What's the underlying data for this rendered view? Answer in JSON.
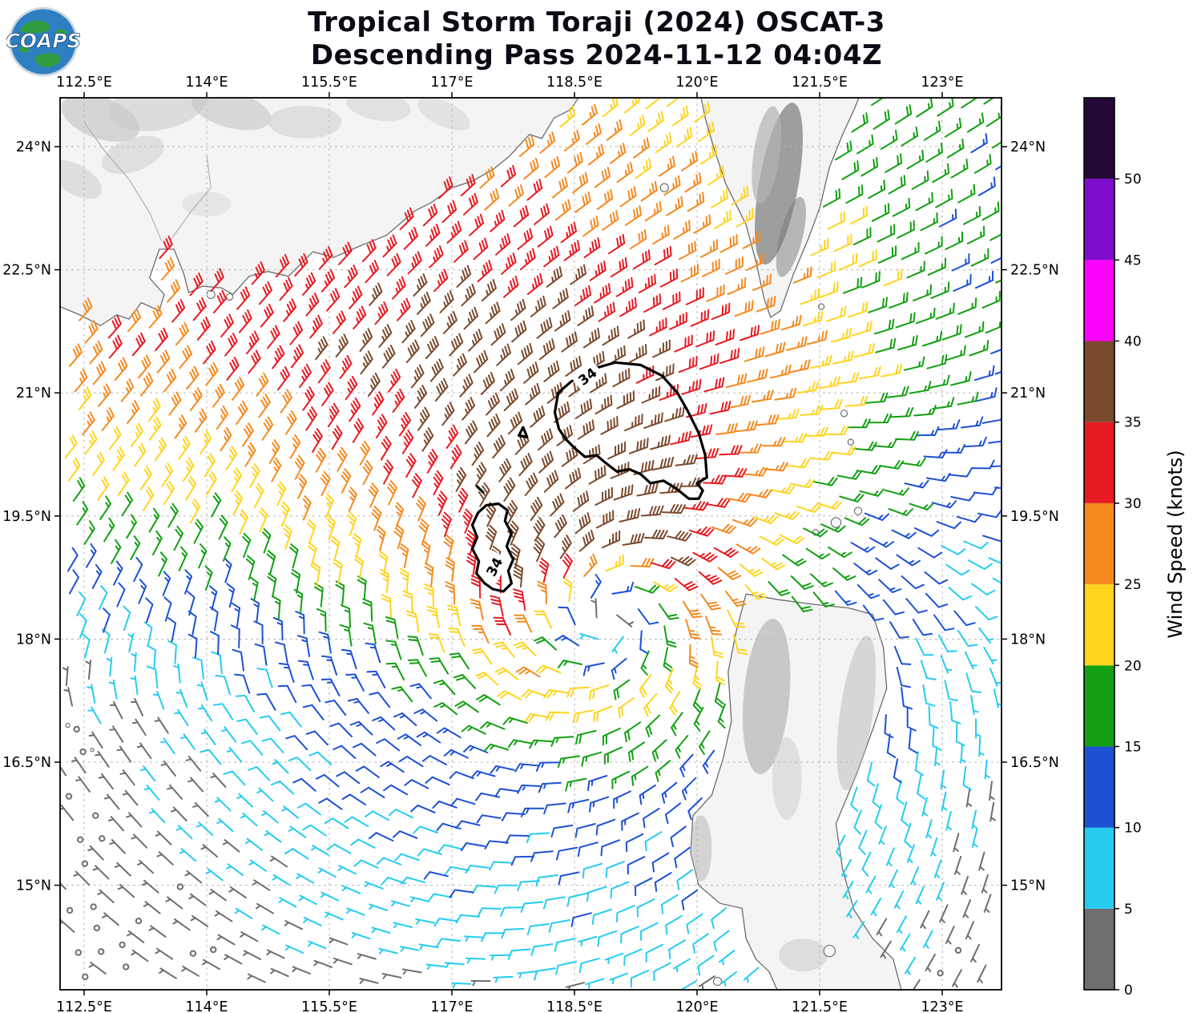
{
  "header": {
    "title_line1": "Tropical Storm Toraji (2024) OSCAT-3",
    "title_line2": "Descending Pass 2024-11-12 04:04Z"
  },
  "logo": {
    "text": "COAPS"
  },
  "chart_data": {
    "type": "scatter",
    "subtype": "wind-barb-map",
    "title": "Tropical Storm Toraji (2024) OSCAT-3",
    "subtitle": "Descending Pass 2024-11-12 04:04Z",
    "storm_name": "Toraji",
    "x_axis": {
      "ticks": [
        112.5,
        114,
        115.5,
        117,
        118.5,
        120,
        121.5,
        123
      ],
      "labels": [
        "112.5°E",
        "114°E",
        "115.5°E",
        "117°E",
        "118.5°E",
        "120°E",
        "121.5°E",
        "123°E"
      ],
      "range": [
        112.206,
        123.725
      ]
    },
    "y_axis": {
      "ticks": [
        15,
        16.5,
        18,
        19.5,
        21,
        22.5,
        24
      ],
      "labels": [
        "15°N",
        "16.5°N",
        "18°N",
        "19.5°N",
        "21°N",
        "22.5°N",
        "24°N"
      ],
      "range": [
        13.727,
        24.596
      ]
    },
    "colorbar": {
      "label": "Wind Speed (knots)",
      "tick_labels": [
        "0",
        "5",
        "10",
        "15",
        "20",
        "25",
        "30",
        "35",
        "40",
        "45",
        "50"
      ],
      "bins": [
        {
          "max": 5,
          "color": "#6e6e6e"
        },
        {
          "max": 10,
          "color": "#25ccf0"
        },
        {
          "max": 15,
          "color": "#1d50d4"
        },
        {
          "max": 20,
          "color": "#12a012"
        },
        {
          "max": 25,
          "color": "#ffd41f"
        },
        {
          "max": 30,
          "color": "#f6891e"
        },
        {
          "max": 35,
          "color": "#e71a21"
        },
        {
          "max": 40,
          "color": "#7a4a2d"
        },
        {
          "max": 45,
          "color": "#fb02fb"
        },
        {
          "max": 50,
          "color": "#7d0ccd"
        },
        {
          "max": 999,
          "color": "#240838"
        }
      ]
    },
    "wind_field": {
      "center_lon": 118.85,
      "center_lat": 18.4,
      "max_wind_kt": 34,
      "radius_max_wind_deg": 1.1,
      "asymmetry": "north-enhanced",
      "background_flow": "northeasterly monsoon, strongest north and west",
      "grid_spacing_deg": 0.27,
      "grid_rotation_deg": 12,
      "barb_units": "knots"
    },
    "contours_34kt": [
      {
        "closed": true,
        "points": [
          [
            118.26,
            20.76
          ],
          [
            118.3,
            21.0
          ],
          [
            118.45,
            21.13
          ],
          [
            118.68,
            21.28
          ],
          [
            119.0,
            21.37
          ],
          [
            119.31,
            21.34
          ],
          [
            119.57,
            21.21
          ],
          [
            119.76,
            21.0
          ],
          [
            119.88,
            20.79
          ],
          [
            120.02,
            20.51
          ],
          [
            120.1,
            20.24
          ],
          [
            120.12,
            19.97
          ],
          [
            120.0,
            19.9
          ],
          [
            120.07,
            19.81
          ],
          [
            120.02,
            19.71
          ],
          [
            119.9,
            19.71
          ],
          [
            119.75,
            19.83
          ],
          [
            119.59,
            19.93
          ],
          [
            119.43,
            19.9
          ],
          [
            119.31,
            20.01
          ],
          [
            119.17,
            20.07
          ],
          [
            119.02,
            20.04
          ],
          [
            118.89,
            20.14
          ],
          [
            118.77,
            20.24
          ],
          [
            118.63,
            20.22
          ],
          [
            118.51,
            20.32
          ],
          [
            118.4,
            20.43
          ],
          [
            118.31,
            20.56
          ]
        ]
      },
      {
        "closed": true,
        "points": [
          [
            117.42,
            19.63
          ],
          [
            117.32,
            19.54
          ],
          [
            117.25,
            19.39
          ],
          [
            117.31,
            19.24
          ],
          [
            117.25,
            19.1
          ],
          [
            117.33,
            18.95
          ],
          [
            117.3,
            18.8
          ],
          [
            117.4,
            18.68
          ],
          [
            117.5,
            18.61
          ],
          [
            117.63,
            18.58
          ],
          [
            117.73,
            18.68
          ],
          [
            117.69,
            18.83
          ],
          [
            117.75,
            18.97
          ],
          [
            117.67,
            19.13
          ],
          [
            117.73,
            19.29
          ],
          [
            117.65,
            19.44
          ],
          [
            117.68,
            19.57
          ],
          [
            117.57,
            19.65
          ]
        ]
      },
      {
        "closed": true,
        "points": [
          [
            117.87,
            20.58
          ],
          [
            117.82,
            20.48
          ],
          [
            117.92,
            20.46
          ],
          [
            117.88,
            20.56
          ]
        ]
      },
      {
        "closed": false,
        "points": [
          [
            117.31,
            19.86
          ],
          [
            117.38,
            19.79
          ]
        ]
      }
    ],
    "contour_labels": [
      {
        "text": "34",
        "lon": 118.66,
        "lat": 21.2,
        "angle": -38
      },
      {
        "text": "34",
        "lon": 117.52,
        "lat": 18.88,
        "angle": -62
      }
    ]
  },
  "map": {
    "land_fill": "#f4f4f4",
    "coast_color": "#6b6b6b",
    "china_coast_polygon": [
      [
        112.206,
        22.05
      ],
      [
        112.45,
        21.95
      ],
      [
        112.7,
        21.82
      ],
      [
        112.9,
        21.95
      ],
      [
        113.05,
        21.9
      ],
      [
        113.2,
        22.1
      ],
      [
        113.42,
        22.0
      ],
      [
        113.48,
        22.2
      ],
      [
        113.3,
        22.4
      ],
      [
        113.42,
        22.75
      ],
      [
        113.6,
        22.75
      ],
      [
        113.72,
        22.45
      ],
      [
        113.78,
        22.22
      ],
      [
        113.95,
        22.3
      ],
      [
        114.18,
        22.28
      ],
      [
        114.32,
        22.2
      ],
      [
        114.52,
        22.42
      ],
      [
        114.75,
        22.48
      ],
      [
        115.0,
        22.42
      ],
      [
        115.3,
        22.72
      ],
      [
        115.55,
        22.65
      ],
      [
        115.85,
        22.78
      ],
      [
        116.2,
        22.92
      ],
      [
        116.55,
        23.22
      ],
      [
        116.75,
        23.32
      ],
      [
        117.0,
        23.5
      ],
      [
        117.25,
        23.58
      ],
      [
        117.5,
        23.72
      ],
      [
        117.7,
        23.88
      ],
      [
        117.95,
        24.15
      ],
      [
        118.1,
        24.1
      ],
      [
        118.25,
        24.35
      ],
      [
        118.45,
        24.45
      ],
      [
        118.55,
        24.596
      ],
      [
        112.206,
        24.596
      ]
    ],
    "taiwan_polygon": [
      [
        120.05,
        24.596
      ],
      [
        120.1,
        24.35
      ],
      [
        120.2,
        24.0
      ],
      [
        120.35,
        23.55
      ],
      [
        120.6,
        23.05
      ],
      [
        120.72,
        22.6
      ],
      [
        120.82,
        22.15
      ],
      [
        120.9,
        21.92
      ],
      [
        121.02,
        22.0
      ],
      [
        121.18,
        22.45
      ],
      [
        121.35,
        22.85
      ],
      [
        121.5,
        23.25
      ],
      [
        121.62,
        23.75
      ],
      [
        121.78,
        24.15
      ],
      [
        121.92,
        24.45
      ],
      [
        121.98,
        24.596
      ]
    ],
    "luzon_polygon": [
      [
        120.6,
        18.55
      ],
      [
        121.0,
        18.48
      ],
      [
        121.45,
        18.42
      ],
      [
        121.85,
        18.38
      ],
      [
        122.15,
        18.3
      ],
      [
        122.28,
        17.9
      ],
      [
        122.32,
        17.4
      ],
      [
        122.15,
        16.9
      ],
      [
        121.95,
        16.35
      ],
      [
        121.7,
        15.75
      ],
      [
        121.78,
        15.2
      ],
      [
        121.92,
        14.7
      ],
      [
        122.15,
        14.35
      ],
      [
        122.4,
        14.1
      ],
      [
        122.5,
        13.727
      ],
      [
        120.98,
        13.727
      ],
      [
        120.88,
        13.95
      ],
      [
        120.72,
        14.1
      ],
      [
        120.6,
        14.35
      ],
      [
        120.55,
        14.72
      ],
      [
        120.28,
        14.78
      ],
      [
        120.02,
        15.0
      ],
      [
        119.92,
        15.4
      ],
      [
        119.95,
        15.85
      ],
      [
        120.18,
        16.1
      ],
      [
        120.32,
        16.55
      ],
      [
        120.42,
        17.0
      ],
      [
        120.38,
        17.6
      ],
      [
        120.48,
        18.1
      ]
    ],
    "islands": [
      {
        "lon": 114.05,
        "lat": 22.2,
        "r": 0.05
      },
      {
        "lon": 114.28,
        "lat": 22.17,
        "r": 0.04
      },
      {
        "lon": 119.6,
        "lat": 23.5,
        "r": 0.05
      },
      {
        "lon": 121.8,
        "lat": 20.75,
        "r": 0.04
      },
      {
        "lon": 121.88,
        "lat": 20.4,
        "r": 0.035
      },
      {
        "lon": 121.7,
        "lat": 19.42,
        "r": 0.06
      },
      {
        "lon": 121.97,
        "lat": 19.56,
        "r": 0.045
      },
      {
        "lon": 121.45,
        "lat": 19.3,
        "r": 0.035
      },
      {
        "lon": 112.3,
        "lat": 16.95,
        "r": 0.025
      },
      {
        "lon": 112.6,
        "lat": 16.65,
        "r": 0.02
      },
      {
        "lon": 121.62,
        "lat": 14.2,
        "r": 0.07
      },
      {
        "lon": 120.25,
        "lat": 13.83,
        "r": 0.05
      },
      {
        "lon": 121.52,
        "lat": 22.05,
        "r": 0.035
      }
    ],
    "terrain_patches": [
      {
        "lon": 112.7,
        "lat": 24.35,
        "rx": 0.5,
        "ry": 0.25,
        "rot": 20,
        "color": "#c8c8c8",
        "op": 0.7
      },
      {
        "lon": 113.4,
        "lat": 24.5,
        "rx": 0.6,
        "ry": 0.3,
        "rot": -10,
        "color": "#cccccc",
        "op": 0.6
      },
      {
        "lon": 114.3,
        "lat": 24.45,
        "rx": 0.5,
        "ry": 0.22,
        "rot": 15,
        "color": "#c4c4c4",
        "op": 0.6
      },
      {
        "lon": 115.2,
        "lat": 24.3,
        "rx": 0.45,
        "ry": 0.2,
        "rot": 0,
        "color": "#d0d0d0",
        "op": 0.6
      },
      {
        "lon": 112.4,
        "lat": 23.6,
        "rx": 0.35,
        "ry": 0.18,
        "rot": 30,
        "color": "#cfcfcf",
        "op": 0.6
      },
      {
        "lon": 113.1,
        "lat": 23.9,
        "rx": 0.4,
        "ry": 0.2,
        "rot": -20,
        "color": "#c9c9c9",
        "op": 0.5
      },
      {
        "lon": 116.1,
        "lat": 24.5,
        "rx": 0.4,
        "ry": 0.18,
        "rot": 10,
        "color": "#d2d2d2",
        "op": 0.55
      },
      {
        "lon": 114.0,
        "lat": 23.3,
        "rx": 0.3,
        "ry": 0.15,
        "rot": 0,
        "color": "#d6d6d6",
        "op": 0.5
      },
      {
        "lon": 116.9,
        "lat": 24.4,
        "rx": 0.35,
        "ry": 0.15,
        "rot": 25,
        "color": "#cfcfcf",
        "op": 0.5
      },
      {
        "lon": 121.0,
        "lat": 23.55,
        "rx": 0.24,
        "ry": 1.0,
        "rot": 10,
        "color": "#8e8e8e",
        "op": 0.85
      },
      {
        "lon": 120.85,
        "lat": 23.9,
        "rx": 0.16,
        "ry": 0.6,
        "rot": 8,
        "color": "#b3b3b3",
        "op": 0.7
      },
      {
        "lon": 121.15,
        "lat": 22.9,
        "rx": 0.14,
        "ry": 0.5,
        "rot": 14,
        "color": "#777777",
        "op": 0.5
      },
      {
        "lon": 120.85,
        "lat": 17.3,
        "rx": 0.28,
        "ry": 0.95,
        "rot": 5,
        "color": "#b5b5b5",
        "op": 0.7
      },
      {
        "lon": 121.95,
        "lat": 17.1,
        "rx": 0.2,
        "ry": 0.95,
        "rot": 8,
        "color": "#c2c2c2",
        "op": 0.6
      },
      {
        "lon": 120.05,
        "lat": 15.45,
        "rx": 0.13,
        "ry": 0.4,
        "rot": 0,
        "color": "#bcbcbc",
        "op": 0.6
      },
      {
        "lon": 121.1,
        "lat": 16.3,
        "rx": 0.18,
        "ry": 0.5,
        "rot": 0,
        "color": "#cacaca",
        "op": 0.5
      },
      {
        "lon": 121.3,
        "lat": 14.15,
        "rx": 0.3,
        "ry": 0.2,
        "rot": 0,
        "color": "#c6c6c6",
        "op": 0.5
      }
    ],
    "rivers": [
      [
        [
          113.45,
          22.85
        ],
        [
          113.3,
          23.2
        ],
        [
          113.05,
          23.6
        ],
        [
          112.75,
          23.95
        ],
        [
          112.5,
          24.3
        ]
      ],
      [
        [
          113.55,
          22.85
        ],
        [
          113.8,
          23.2
        ],
        [
          114.05,
          23.5
        ],
        [
          114.0,
          23.9
        ]
      ]
    ]
  }
}
